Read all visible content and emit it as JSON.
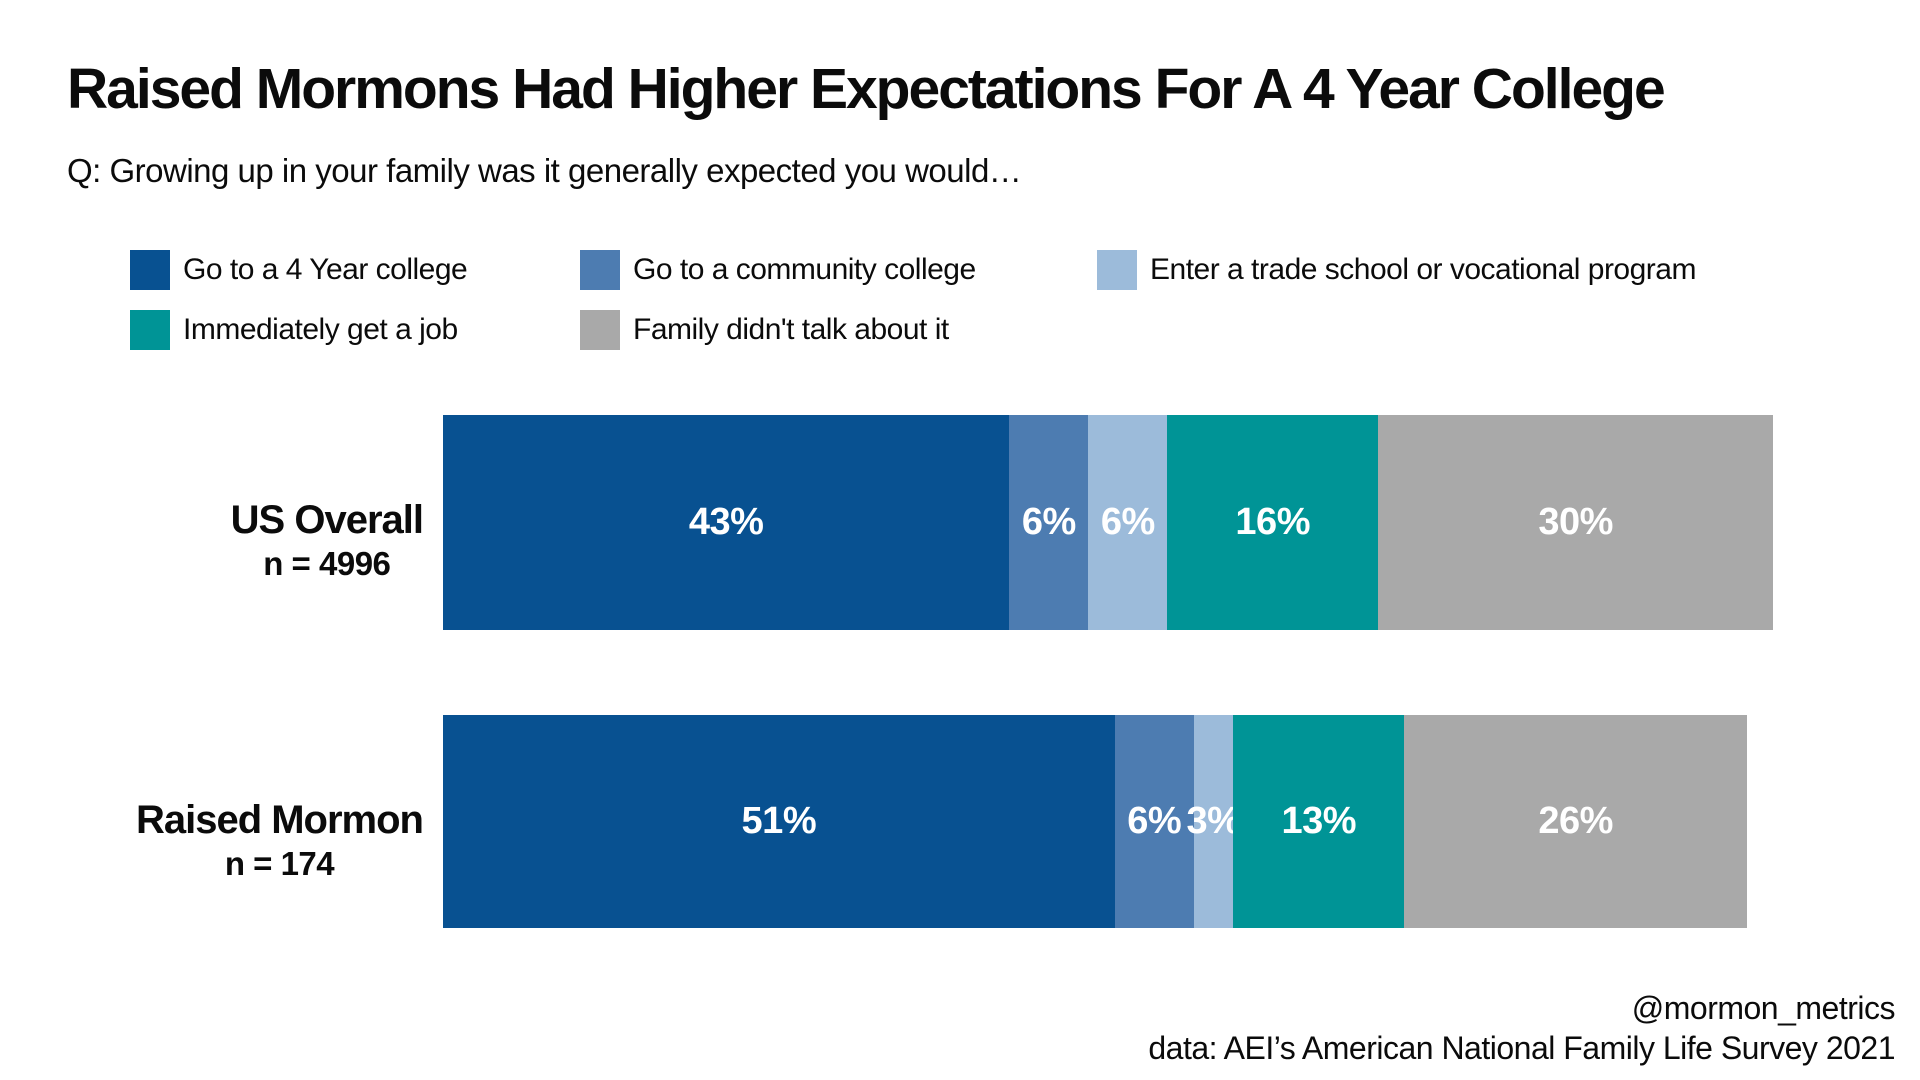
{
  "title": "Raised Mormons Had Higher Expectations For A 4 Year College",
  "subtitle": "Q: Growing up in your family was it generally expected you would…",
  "legend": [
    {
      "label": "Go to a 4 Year college",
      "color": "#085191"
    },
    {
      "label": "Go to a community college",
      "color": "#4d7cb1"
    },
    {
      "label": "Enter a trade school or vocational program",
      "color": "#9cbbda"
    },
    {
      "label": "Immediately get a job",
      "color": "#009496"
    },
    {
      "label": "Family didn't talk about it",
      "color": "#a9a9a9"
    }
  ],
  "chart_data": {
    "type": "bar",
    "orientation": "horizontal-stacked",
    "categories": [
      "US Overall",
      "Raised Mormon"
    ],
    "category_sublabels": [
      "n = 4996",
      "n = 174"
    ],
    "series": [
      {
        "name": "Go to a 4 Year college",
        "color": "#085191",
        "values": [
          43,
          51
        ]
      },
      {
        "name": "Go to a community college",
        "color": "#4d7cb1",
        "values": [
          6,
          6
        ]
      },
      {
        "name": "Enter a trade school or vocational program",
        "color": "#9cbbda",
        "values": [
          6,
          3
        ]
      },
      {
        "name": "Immediately get a job",
        "color": "#009496",
        "values": [
          16,
          13
        ]
      },
      {
        "name": "Family didn't talk about it",
        "color": "#a9a9a9",
        "values": [
          30,
          26
        ]
      }
    ],
    "value_label_format": "{v}%",
    "value_label_color": "#ffffff",
    "legend_position": "top-left",
    "grid": false,
    "axis": "none"
  },
  "footer": {
    "handle": "@mormon_metrics",
    "source": "data: AEI’s American National Family Life Survey 2021"
  }
}
